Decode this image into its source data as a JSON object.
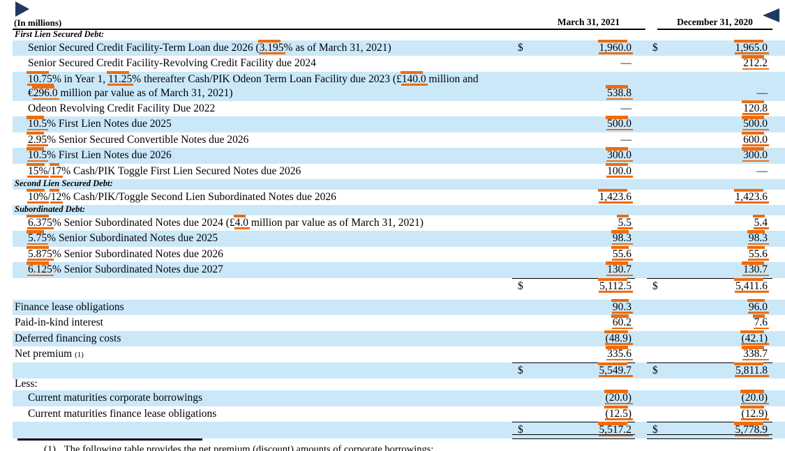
{
  "nav": {
    "forward_marker_icon": "right-triangle",
    "back_marker_icon": "left-triangle"
  },
  "colors": {
    "row_highlight": "#cbe8f9",
    "annotation_orange": "#ee6c0d",
    "marker_navy": "#1f3a60"
  },
  "table": {
    "units_label": "(In millions)",
    "columns": [
      "March 31, 2021",
      "December 31, 2020"
    ],
    "rows": [
      {
        "kind": "section",
        "shade": false,
        "label": [
          [
            "First Lien Secured Debt:",
            0
          ]
        ]
      },
      {
        "kind": "item",
        "shade": true,
        "indent": 1,
        "label": [
          [
            "Senior Secured Credit Facility-Term Loan due 2026 (",
            0
          ],
          [
            "3.195",
            1
          ],
          [
            "% as of March 31, 2021)",
            0
          ]
        ],
        "d1": "$",
        "v1": "1,960.0",
        "a1": 1,
        "d2": "$",
        "v2": "1,965.0",
        "a2": 1
      },
      {
        "kind": "item",
        "shade": false,
        "indent": 1,
        "label": [
          [
            "Senior Secured Credit Facility-Revolving Credit Facility due 2024",
            0
          ]
        ],
        "v1": "—",
        "v2": "212.2",
        "a2": 1
      },
      {
        "kind": "item",
        "shade": true,
        "indent": 1,
        "two_line": 1,
        "label": [
          [
            "10.75",
            1
          ],
          [
            "% in Year 1,  ",
            0
          ],
          [
            "11.25",
            1
          ],
          [
            "% thereafter Cash/PIK Odeon Term Loan Facility due 2023 (£",
            0
          ],
          [
            "140.0",
            1
          ],
          [
            " million and",
            0
          ],
          [
            "\n",
            0
          ],
          [
            "€",
            0
          ],
          [
            "296.0",
            1
          ],
          [
            " million par value as of March 31, 2021)",
            0
          ]
        ],
        "v1": "538.8",
        "a1": 1,
        "v2": "—"
      },
      {
        "kind": "item",
        "shade": false,
        "indent": 1,
        "label": [
          [
            "Odeon Revolving Credit Facility Due 2022",
            0
          ]
        ],
        "v1": "—",
        "v2": "120.8",
        "a2": 1
      },
      {
        "kind": "item",
        "shade": true,
        "indent": 1,
        "label": [
          [
            "10.5",
            1
          ],
          [
            "% First Lien Notes due 2025",
            0
          ]
        ],
        "v1": "500.0",
        "a1": 1,
        "v2": "500.0",
        "a2": 1
      },
      {
        "kind": "item",
        "shade": false,
        "indent": 1,
        "label": [
          [
            "2.95",
            1
          ],
          [
            "% Senior Secured Convertible Notes due 2026",
            0
          ]
        ],
        "v1": "—",
        "v2": "600.0",
        "a2": 1
      },
      {
        "kind": "item",
        "shade": true,
        "indent": 1,
        "label": [
          [
            "10.5",
            1
          ],
          [
            "% First Lien Notes due 2026",
            0
          ]
        ],
        "v1": "300.0",
        "a1": 1,
        "v2": "300.0",
        "a2": 1
      },
      {
        "kind": "item",
        "shade": false,
        "indent": 1,
        "label": [
          [
            "15%",
            1
          ],
          [
            "/",
            0
          ],
          [
            "17",
            1
          ],
          [
            "% Cash/PIK Toggle First Lien Secured Notes due 2026",
            0
          ]
        ],
        "v1": "100.0",
        "a1": 1,
        "v2": "—"
      },
      {
        "kind": "section",
        "shade": true,
        "label": [
          [
            "Second Lien Secured Debt:",
            0
          ]
        ]
      },
      {
        "kind": "item",
        "shade": false,
        "indent": 1,
        "label": [
          [
            "10%",
            1
          ],
          [
            "/",
            0
          ],
          [
            "12",
            1
          ],
          [
            "% Cash/PIK/Toggle Second Lien Subordinated Notes due 2026",
            0
          ]
        ],
        "v1": "1,423.6",
        "a1": 1,
        "v2": "1,423.6",
        "a2": 1
      },
      {
        "kind": "section",
        "shade": true,
        "label": [
          [
            "Subordinated Debt:",
            0
          ]
        ]
      },
      {
        "kind": "item",
        "shade": false,
        "indent": 1,
        "label": [
          [
            "6.375",
            1
          ],
          [
            "% Senior Subordinated Notes due 2024 (£",
            0
          ],
          [
            "4.0",
            1
          ],
          [
            " million par value as of March 31, 2021)",
            0
          ]
        ],
        "v1": "5.5",
        "a1": 1,
        "v2": "5.4",
        "a2": 1
      },
      {
        "kind": "item",
        "shade": true,
        "indent": 1,
        "label": [
          [
            "5.75",
            1
          ],
          [
            "% Senior Subordinated Notes due 2025",
            0
          ]
        ],
        "v1": "98.3",
        "a1": 1,
        "v2": "98.3",
        "a2": 1
      },
      {
        "kind": "item",
        "shade": false,
        "indent": 1,
        "label": [
          [
            "5.875",
            1
          ],
          [
            "% Senior Subordinated Notes due 2026",
            0
          ]
        ],
        "v1": "55.6",
        "a1": 1,
        "v2": "55.6",
        "a2": 1
      },
      {
        "kind": "item",
        "shade": true,
        "indent": 1,
        "label": [
          [
            "6.125",
            1
          ],
          [
            "% Senior Subordinated Notes due 2027",
            0
          ]
        ],
        "v1": "130.7",
        "a1": 1,
        "v2": "130.7",
        "a2": 1
      },
      {
        "kind": "subtotal",
        "shade": false,
        "tall": 1,
        "d1": "$",
        "v1": "5,112.5",
        "a1": 1,
        "d2": "$",
        "v2": "5,411.6",
        "a2": 1
      },
      {
        "kind": "item",
        "shade": true,
        "indent": 0,
        "label": [
          [
            "Finance lease obligations",
            0
          ]
        ],
        "v1": "90.3",
        "a1": 1,
        "v2": "96.0",
        "a2": 1
      },
      {
        "kind": "item",
        "shade": false,
        "indent": 0,
        "label": [
          [
            "Paid-in-kind interest",
            0
          ]
        ],
        "v1": "60.2",
        "a1": 1,
        "v2": "7.6",
        "a2": 1
      },
      {
        "kind": "item",
        "shade": true,
        "indent": 0,
        "label": [
          [
            "Deferred financing costs",
            0
          ]
        ],
        "v1": "(48.9)",
        "a1": 1,
        "v2": "(42.1)",
        "a2": 1
      },
      {
        "kind": "item",
        "shade": false,
        "indent": 0,
        "label": [
          [
            "Net premium ",
            0
          ],
          [
            "(1)",
            2
          ]
        ],
        "v1": "335.6",
        "a1": 1,
        "v2": "338.7",
        "a2": 1
      },
      {
        "kind": "subtotal",
        "shade": true,
        "d1": "$",
        "v1": "5,549.7",
        "a1": 1,
        "d2": "$",
        "v2": "5,811.8",
        "a2": 1
      },
      {
        "kind": "item",
        "shade": false,
        "indent": 0,
        "h": 17.5,
        "lh": 16,
        "label": [
          [
            "Less:",
            0
          ]
        ]
      },
      {
        "kind": "item",
        "shade": true,
        "indent": 1,
        "label": [
          [
            "Current maturities corporate borrowings",
            0
          ]
        ],
        "v1": "(20.0)",
        "a1": 1,
        "v2": "(20.0)",
        "a2": 1
      },
      {
        "kind": "item",
        "shade": false,
        "indent": 1,
        "label": [
          [
            "Current maturities finance lease obligations",
            0
          ]
        ],
        "v1": "(12.5)",
        "a1": 1,
        "v2": "(12.9)",
        "a2": 1
      },
      {
        "kind": "total",
        "shade": true,
        "d1": "$",
        "v1": "5,517.2",
        "a1": 1,
        "d2": "$",
        "v2": "5,778.9",
        "a2": 1
      }
    ],
    "footnote": {
      "marker": "(1)",
      "text": "The following table provides the net premium (discount) amounts of corporate borrowings:"
    }
  }
}
